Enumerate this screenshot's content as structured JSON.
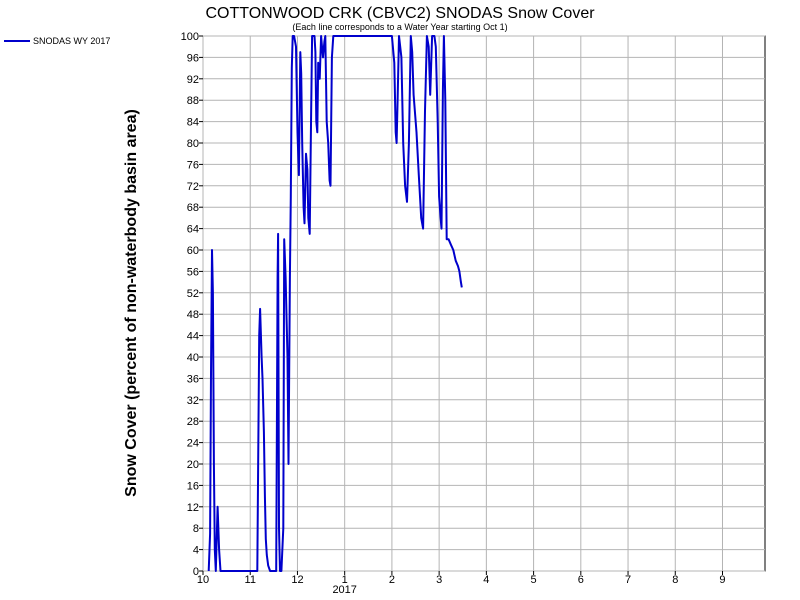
{
  "chart_data": {
    "type": "line",
    "title": "COTTONWOOD CRK (CBVC2) SNODAS Snow Cover",
    "subtitle": "(Each line corresponds to a Water Year starting Oct 1)",
    "xlabel": "",
    "ylabel": "Snow Cover (percent of non-waterbody basin area)",
    "ylim": [
      0,
      100
    ],
    "yticks": [
      0,
      4,
      8,
      12,
      16,
      20,
      24,
      28,
      32,
      36,
      40,
      44,
      48,
      52,
      56,
      60,
      64,
      68,
      72,
      76,
      80,
      84,
      88,
      92,
      96,
      100
    ],
    "x_domain_months": [
      10,
      21.9
    ],
    "xticks": [
      {
        "pos": 10,
        "label": "10"
      },
      {
        "pos": 11,
        "label": "11"
      },
      {
        "pos": 12,
        "label": "12"
      },
      {
        "pos": 13,
        "label": "1",
        "sublabel": "2017"
      },
      {
        "pos": 14,
        "label": "2"
      },
      {
        "pos": 15,
        "label": "3"
      },
      {
        "pos": 16,
        "label": "4"
      },
      {
        "pos": 17,
        "label": "5"
      },
      {
        "pos": 18,
        "label": "6"
      },
      {
        "pos": 19,
        "label": "7"
      },
      {
        "pos": 20,
        "label": "8"
      },
      {
        "pos": 21,
        "label": "9"
      }
    ],
    "grid": true,
    "legend": "top-left",
    "series": [
      {
        "name": "SNODAS WY 2017",
        "color": "#0000cc",
        "points": [
          [
            10.12,
            0
          ],
          [
            10.15,
            7
          ],
          [
            10.17,
            37
          ],
          [
            10.19,
            60
          ],
          [
            10.21,
            52
          ],
          [
            10.23,
            20
          ],
          [
            10.25,
            4
          ],
          [
            10.27,
            0
          ],
          [
            10.31,
            12
          ],
          [
            10.34,
            4
          ],
          [
            10.37,
            0
          ],
          [
            10.45,
            0
          ],
          [
            11.1,
            0
          ],
          [
            11.15,
            0
          ],
          [
            11.19,
            44
          ],
          [
            11.21,
            49
          ],
          [
            11.24,
            40
          ],
          [
            11.26,
            36
          ],
          [
            11.29,
            26
          ],
          [
            11.31,
            14
          ],
          [
            11.33,
            6
          ],
          [
            11.35,
            3
          ],
          [
            11.38,
            1
          ],
          [
            11.42,
            0
          ],
          [
            11.55,
            0
          ],
          [
            11.58,
            55
          ],
          [
            11.59,
            63
          ],
          [
            11.61,
            8
          ],
          [
            11.63,
            0
          ],
          [
            11.66,
            0
          ],
          [
            11.7,
            8
          ],
          [
            11.72,
            62
          ],
          [
            11.75,
            55
          ],
          [
            11.77,
            47
          ],
          [
            11.79,
            40
          ],
          [
            11.81,
            20
          ],
          [
            11.84,
            55
          ],
          [
            11.86,
            70
          ],
          [
            11.88,
            94
          ],
          [
            11.9,
            100
          ],
          [
            11.93,
            100
          ],
          [
            11.97,
            98
          ],
          [
            12.0,
            82
          ],
          [
            12.03,
            74
          ],
          [
            12.06,
            97
          ],
          [
            12.08,
            93
          ],
          [
            12.1,
            80
          ],
          [
            12.13,
            68
          ],
          [
            12.15,
            65
          ],
          [
            12.18,
            78
          ],
          [
            12.21,
            75
          ],
          [
            12.23,
            66
          ],
          [
            12.26,
            63
          ],
          [
            12.29,
            85
          ],
          [
            12.31,
            100
          ],
          [
            12.36,
            100
          ],
          [
            12.38,
            97
          ],
          [
            12.4,
            84
          ],
          [
            12.42,
            82
          ],
          [
            12.44,
            95
          ],
          [
            12.47,
            92
          ],
          [
            12.5,
            100
          ],
          [
            12.52,
            98
          ],
          [
            12.54,
            96
          ],
          [
            12.57,
            99
          ],
          [
            12.59,
            100
          ],
          [
            12.62,
            84
          ],
          [
            12.65,
            80
          ],
          [
            12.68,
            73
          ],
          [
            12.7,
            72
          ],
          [
            12.73,
            96
          ],
          [
            12.76,
            100
          ],
          [
            12.85,
            100
          ],
          [
            13.1,
            100
          ],
          [
            13.2,
            100
          ],
          [
            13.3,
            100
          ],
          [
            13.4,
            100
          ],
          [
            13.5,
            100
          ],
          [
            13.6,
            100
          ],
          [
            13.75,
            100
          ],
          [
            13.9,
            100
          ],
          [
            14.0,
            100
          ],
          [
            14.05,
            95
          ],
          [
            14.08,
            82
          ],
          [
            14.1,
            80
          ],
          [
            14.12,
            88
          ],
          [
            14.15,
            100
          ],
          [
            14.2,
            96
          ],
          [
            14.24,
            80
          ],
          [
            14.28,
            72
          ],
          [
            14.32,
            69
          ],
          [
            14.36,
            80
          ],
          [
            14.4,
            100
          ],
          [
            14.43,
            97
          ],
          [
            14.46,
            89
          ],
          [
            14.52,
            82
          ],
          [
            14.57,
            74
          ],
          [
            14.62,
            66
          ],
          [
            14.66,
            64
          ],
          [
            14.7,
            86
          ],
          [
            14.74,
            100
          ],
          [
            14.78,
            98
          ],
          [
            14.81,
            89
          ],
          [
            14.85,
            100
          ],
          [
            14.9,
            100
          ],
          [
            14.93,
            98
          ],
          [
            14.97,
            84
          ],
          [
            15.0,
            70
          ],
          [
            15.03,
            66
          ],
          [
            15.05,
            64
          ],
          [
            15.08,
            90
          ],
          [
            15.1,
            100
          ],
          [
            15.13,
            88
          ],
          [
            15.16,
            62
          ],
          [
            15.2,
            62
          ],
          [
            15.25,
            61
          ],
          [
            15.3,
            60
          ],
          [
            15.35,
            58
          ],
          [
            15.4,
            57
          ],
          [
            15.43,
            56
          ],
          [
            15.46,
            54
          ],
          [
            15.48,
            53
          ]
        ]
      }
    ]
  }
}
